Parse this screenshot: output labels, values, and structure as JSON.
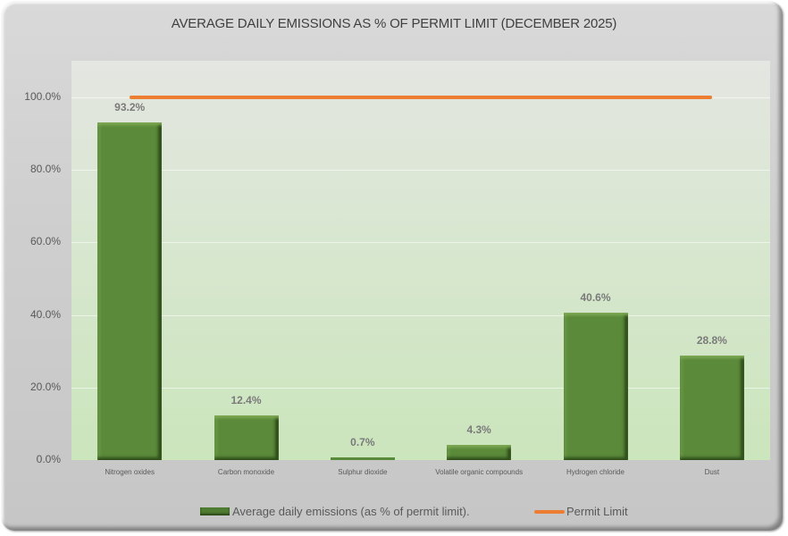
{
  "chart_data": {
    "type": "bar",
    "title": "AVERAGE DAILY EMISSIONS AS % OF PERMIT LIMIT (DECEMBER 2025)",
    "categories": [
      "Nitrogen oxides",
      "Carbon monoxide",
      "Sulphur dioxide",
      "Volatile organic compounds",
      "Hydrogen chloride",
      "Dust"
    ],
    "series": [
      {
        "name": "Average daily emissions (as % of permit limit).",
        "type": "bar",
        "color": "#5b8a3a",
        "values": [
          93.2,
          12.4,
          0.7,
          4.3,
          40.6,
          28.8
        ]
      },
      {
        "name": "Permit Limit",
        "type": "line",
        "color": "#ed7d31",
        "values": [
          100,
          100,
          100,
          100,
          100,
          100
        ]
      }
    ],
    "data_labels": [
      "93.2%",
      "12.4%",
      "0.7%",
      "4.3%",
      "40.6%",
      "28.8%"
    ],
    "xlabel": "",
    "ylabel": "",
    "ylim": [
      0,
      110
    ],
    "yticks": [
      "0.0%",
      "20.0%",
      "40.0%",
      "60.0%",
      "80.0%",
      "100.0%"
    ],
    "grid": true,
    "legend_position": "bottom"
  },
  "legend": {
    "bar_label": "Average daily emissions (as % of permit limit).",
    "line_label": "Permit Limit"
  }
}
